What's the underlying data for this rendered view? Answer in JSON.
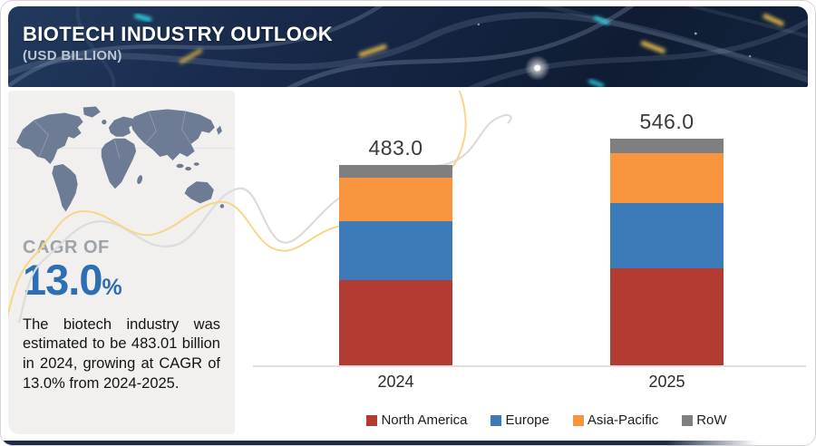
{
  "header": {
    "title": "BIOTECH INDUSTRY OUTLOOK",
    "subtitle": "(USD BILLION)",
    "decoration": "fiber-network-icon"
  },
  "sidebar": {
    "map_icon": "world-map-icon",
    "cagr_label": "CAGR OF",
    "cagr_value": "13.0",
    "cagr_unit": "%",
    "description": "The biotech industry was estimated to be 483.01 billion in 2024, growing at CAGR of 13.0% from 2024-2025."
  },
  "chart_data": {
    "type": "bar",
    "stacked": true,
    "title": "Biotech Industry Outlook (USD Billion)",
    "categories": [
      "2024",
      "2025"
    ],
    "series": [
      {
        "name": "North America",
        "color": "#b23b32",
        "values": [
          205,
          234
        ]
      },
      {
        "name": "Europe",
        "color": "#3d7ab8",
        "values": [
          142,
          157
        ]
      },
      {
        "name": "Asia-Pacific",
        "color": "#f9953f",
        "values": [
          105,
          120
        ]
      },
      {
        "name": "RoW",
        "color": "#7f7f7f",
        "values": [
          31,
          35
        ]
      }
    ],
    "totals": [
      483.0,
      546.0
    ],
    "total_labels": [
      "483.0",
      "546.0"
    ],
    "xlabel": "",
    "ylabel": "USD Billion",
    "ylim": [
      0,
      560
    ],
    "grid": false,
    "legend_position": "bottom"
  },
  "colors": {
    "header_bg": "#16263f",
    "sidebar_bg": "#f1f0ef",
    "map_fill": "#6d7b94",
    "cagr_blue": "#2e6fb4",
    "axis_line": "#e0e0e0",
    "wave_gray": "#dcdcdc",
    "wave_yellow": "#f6d78a",
    "glow_cyan": "#2fd4e8",
    "glow_yellow": "#e3b84e",
    "bottom_strip": "#1e2c47"
  }
}
